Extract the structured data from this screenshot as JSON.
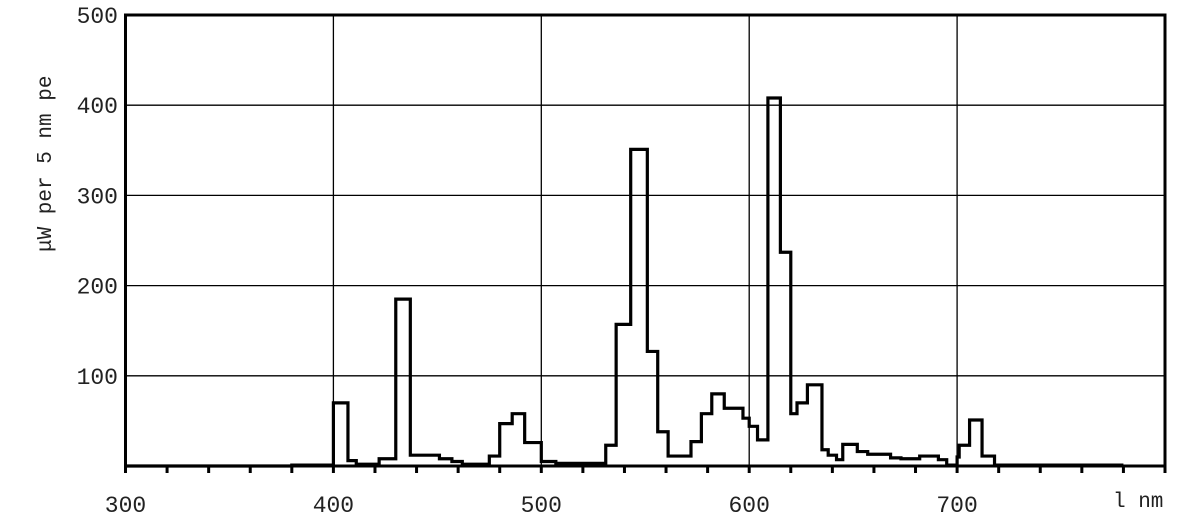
{
  "chart_data": {
    "type": "line",
    "style": "step",
    "title": "",
    "xlabel": "l nm",
    "ylabel": "μW per 5 nm pe",
    "xlim": [
      300,
      800
    ],
    "ylim": [
      0,
      500
    ],
    "x_ticks": [
      300,
      400,
      500,
      600,
      700
    ],
    "y_ticks": [
      100,
      200,
      300,
      400,
      500
    ],
    "x_minor_tick_step": 20,
    "grid": true,
    "line_color": "#000000",
    "steps": [
      [
        300,
        0
      ],
      [
        380,
        1
      ],
      [
        400,
        70
      ],
      [
        407,
        6
      ],
      [
        411,
        2
      ],
      [
        422,
        8
      ],
      [
        430,
        185
      ],
      [
        437,
        12
      ],
      [
        451,
        8
      ],
      [
        457,
        5
      ],
      [
        462,
        2
      ],
      [
        475,
        11
      ],
      [
        480,
        47
      ],
      [
        486,
        58
      ],
      [
        492,
        26
      ],
      [
        500,
        5
      ],
      [
        507,
        3
      ],
      [
        526,
        3
      ],
      [
        531,
        23
      ],
      [
        536,
        157
      ],
      [
        543,
        351
      ],
      [
        551,
        127
      ],
      [
        556,
        38
      ],
      [
        561,
        11
      ],
      [
        572,
        27
      ],
      [
        577,
        58
      ],
      [
        582,
        80
      ],
      [
        588,
        64
      ],
      [
        597,
        53
      ],
      [
        600,
        44
      ],
      [
        604,
        29
      ],
      [
        609,
        408
      ],
      [
        615,
        237
      ],
      [
        620,
        58
      ],
      [
        623,
        70
      ],
      [
        628,
        90
      ],
      [
        635,
        18
      ],
      [
        638,
        12
      ],
      [
        642,
        7
      ],
      [
        645,
        24
      ],
      [
        652,
        16
      ],
      [
        657,
        13
      ],
      [
        668,
        9
      ],
      [
        673,
        8
      ],
      [
        682,
        11
      ],
      [
        691,
        7
      ],
      [
        695,
        1
      ],
      [
        700,
        10
      ],
      [
        701,
        23
      ],
      [
        706,
        51
      ],
      [
        712,
        11
      ],
      [
        718,
        1
      ]
    ],
    "x_end": 780
  }
}
